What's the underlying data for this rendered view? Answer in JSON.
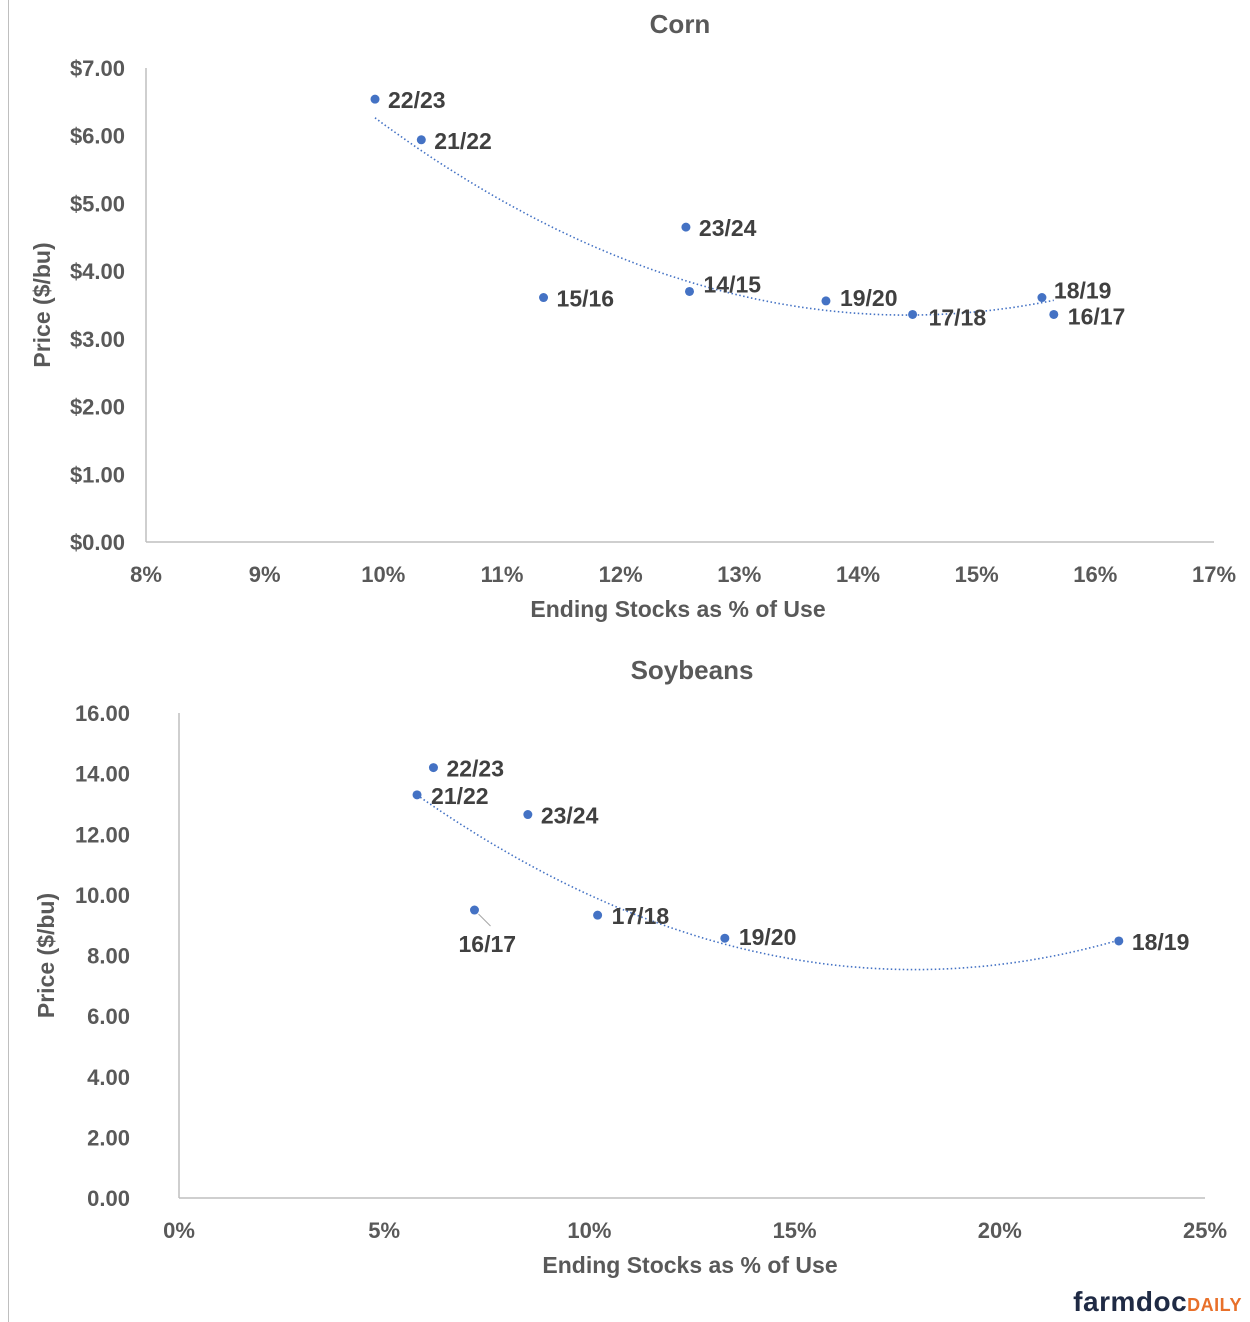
{
  "brand": {
    "part1": "farmdoc",
    "part2": "DAILY",
    "accent": "#e8702a",
    "dark": "#1f2a44"
  },
  "colors": {
    "point": "#4472c4",
    "trend": "#4472c4",
    "axis": "#bfbfbf",
    "text": "#595959"
  },
  "chart_data": [
    {
      "type": "scatter",
      "title": "Corn",
      "xlabel": "Ending Stocks as % of Use",
      "ylabel": "Price ($/bu)",
      "xlim": [
        8,
        17
      ],
      "ylim": [
        0,
        7
      ],
      "x_ticks": [
        "8%",
        "9%",
        "10%",
        "11%",
        "12%",
        "13%",
        "14%",
        "15%",
        "16%",
        "17%"
      ],
      "y_ticks": [
        "$0.00",
        "$1.00",
        "$2.00",
        "$3.00",
        "$4.00",
        "$5.00",
        "$6.00",
        "$7.00"
      ],
      "trendline": "polynomial",
      "points": [
        {
          "label": "22/23",
          "x": 9.93,
          "y": 6.54
        },
        {
          "label": "21/22",
          "x": 10.32,
          "y": 5.94
        },
        {
          "label": "23/24",
          "x": 12.55,
          "y": 4.65
        },
        {
          "label": "15/16",
          "x": 11.35,
          "y": 3.61
        },
        {
          "label": "14/15",
          "x": 12.58,
          "y": 3.7
        },
        {
          "label": "19/20",
          "x": 13.73,
          "y": 3.56
        },
        {
          "label": "17/18",
          "x": 14.46,
          "y": 3.36
        },
        {
          "label": "18/19",
          "x": 15.55,
          "y": 3.61
        },
        {
          "label": "16/17",
          "x": 15.65,
          "y": 3.36
        }
      ]
    },
    {
      "type": "scatter",
      "title": "Soybeans",
      "xlabel": "Ending Stocks as % of Use",
      "ylabel": "Price ($/bu)",
      "xlim": [
        0,
        25
      ],
      "ylim": [
        0,
        16
      ],
      "x_ticks": [
        "0%",
        "5%",
        "10%",
        "15%",
        "20%",
        "25%"
      ],
      "y_ticks": [
        "0.00",
        "2.00",
        "4.00",
        "6.00",
        "8.00",
        "10.00",
        "12.00",
        "14.00",
        "16.00"
      ],
      "trendline": "polynomial",
      "points": [
        {
          "label": "22/23",
          "x": 6.2,
          "y": 14.2
        },
        {
          "label": "21/22",
          "x": 5.8,
          "y": 13.3
        },
        {
          "label": "23/24",
          "x": 8.5,
          "y": 12.65
        },
        {
          "label": "16/17",
          "x": 7.2,
          "y": 9.5
        },
        {
          "label": "17/18",
          "x": 10.2,
          "y": 9.33
        },
        {
          "label": "19/20",
          "x": 13.3,
          "y": 8.57
        },
        {
          "label": "18/19",
          "x": 22.9,
          "y": 8.48
        }
      ]
    }
  ]
}
